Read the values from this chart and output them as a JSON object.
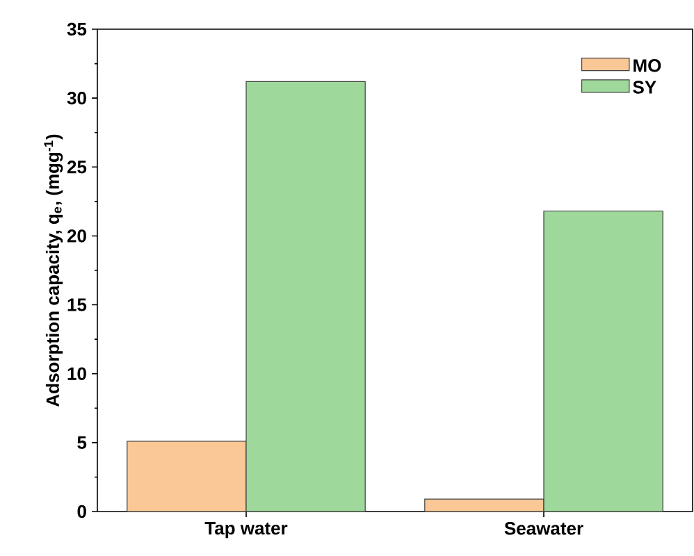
{
  "chart_data": {
    "type": "bar",
    "ylabel": "Adsorption capacity, q$_{e}$, (mgg$^{-1}$)",
    "categories": [
      "Tap water",
      "Seawater"
    ],
    "series": [
      {
        "name": "MO",
        "color": "#f9c896",
        "values": [
          5.1,
          0.9
        ]
      },
      {
        "name": "SY",
        "color": "#9ed89b",
        "values": [
          31.2,
          21.8
        ]
      }
    ],
    "ylim": [
      0,
      35
    ],
    "yticks": [
      0,
      5,
      10,
      15,
      20,
      25,
      30,
      35
    ],
    "grid": false,
    "legend": "top right"
  }
}
